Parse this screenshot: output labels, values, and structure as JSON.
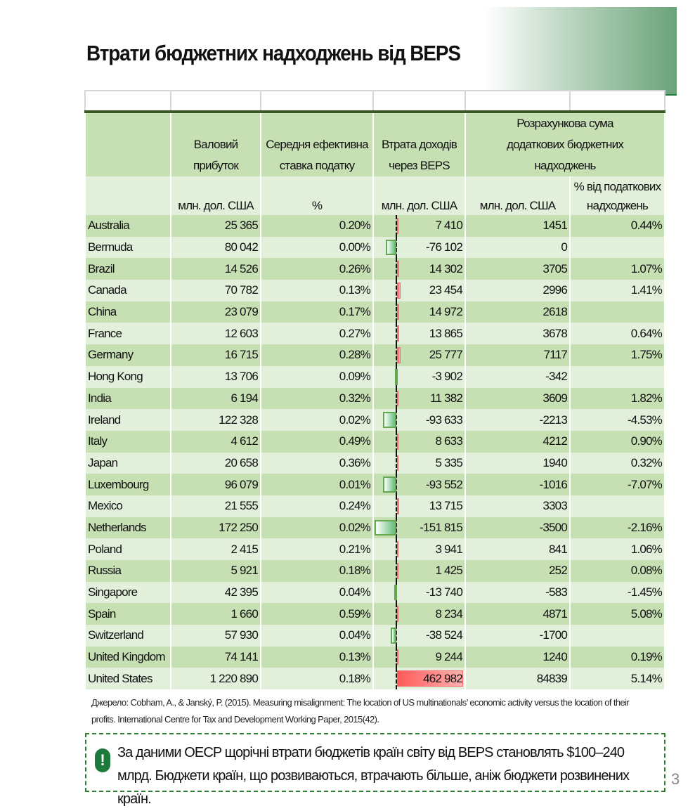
{
  "title": "Втрати бюджетних надходжень від BEPS",
  "headers": {
    "gross": "Валовий прибуток",
    "rate": "Середня ефективна ставка податку",
    "beps": "Втрата доходів через BEPS",
    "est": "Розрахункова сума додаткових бюджетних надходжень"
  },
  "units": {
    "gross": "млн. дол. США",
    "rate": "%",
    "beps": "млн. дол. США",
    "est": "млн. дол. США",
    "pct": "% від податкових надходжень"
  },
  "rows": [
    [
      "Australia",
      "25 365",
      "0.20%",
      "7 410",
      "1451",
      "0.44%"
    ],
    [
      "Bermuda",
      "80 042",
      "0.00%",
      "-76 102",
      "0",
      ""
    ],
    [
      "Brazil",
      "14 526",
      "0.26%",
      "14 302",
      "3705",
      "1.07%"
    ],
    [
      "Canada",
      "70 782",
      "0.13%",
      "23 454",
      "2996",
      "1.41%"
    ],
    [
      "China",
      "23 079",
      "0.17%",
      "14 972",
      "2618",
      ""
    ],
    [
      "France",
      "12 603",
      "0.27%",
      "13 865",
      "3678",
      "0.64%"
    ],
    [
      "Germany",
      "16 715",
      "0.28%",
      "25 777",
      "7117",
      "1.75%"
    ],
    [
      "Hong Kong",
      "13 706",
      "0.09%",
      "-3 902",
      "-342",
      ""
    ],
    [
      "India",
      "6 194",
      "0.32%",
      "11 382",
      "3609",
      "1.82%"
    ],
    [
      "Ireland",
      "122 328",
      "0.02%",
      "-93 633",
      "-2213",
      "-4.53%"
    ],
    [
      "Italy",
      "4 612",
      "0.49%",
      "8 633",
      "4212",
      "0.90%"
    ],
    [
      "Japan",
      "20 658",
      "0.36%",
      "5 335",
      "1940",
      "0.32%"
    ],
    [
      "Luxembourg",
      "96 079",
      "0.01%",
      "-93 552",
      "-1016",
      "-7.07%"
    ],
    [
      "Mexico",
      "21 555",
      "0.24%",
      "13 715",
      "3303",
      ""
    ],
    [
      "Netherlands",
      "172 250",
      "0.02%",
      "-151 815",
      "-3500",
      "-2.16%"
    ],
    [
      "Poland",
      "2 415",
      "0.21%",
      "3 941",
      "841",
      "1.06%"
    ],
    [
      "Russia",
      "5 921",
      "0.18%",
      "1 425",
      "252",
      "0.08%"
    ],
    [
      "Singapore",
      "42 395",
      "0.04%",
      "-13 740",
      "-583",
      "-1.45%"
    ],
    [
      "Spain",
      "1 660",
      "0.59%",
      "8 234",
      "4871",
      "5.08%"
    ],
    [
      "Switzerland",
      "57 930",
      "0.04%",
      "-38 524",
      "-1700",
      ""
    ],
    [
      "United Kingdom",
      "74 141",
      "0.13%",
      "9 244",
      "1240",
      "0.19%"
    ],
    [
      "United States",
      "1 220 890",
      "0.18%",
      "462 982",
      "84839",
      "5.14%"
    ]
  ],
  "source": "Джерело: Cobham, A., & Janský, P. (2015). Measuring misalignment: The location of US multinationals’ economic activity versus the location of their profits. International Centre for Tax and Development Working Paper, 2015(42).",
  "note": "За даними OECP щорічні втрати бюджетів країн світу від BEPS становлять $100–240 млрд. Бюджети країн, що розвиваються, втрачають більше, аніж бюджети розвинених країн.",
  "note_icon": "exclamation-icon",
  "page_number": "3",
  "colors": {
    "accent": "#1e7a3a",
    "row_dark": "#c6e0b4",
    "row_light": "#e2efda",
    "bar_pos": "#f8696b",
    "bar_neg": "#63be7b"
  }
}
